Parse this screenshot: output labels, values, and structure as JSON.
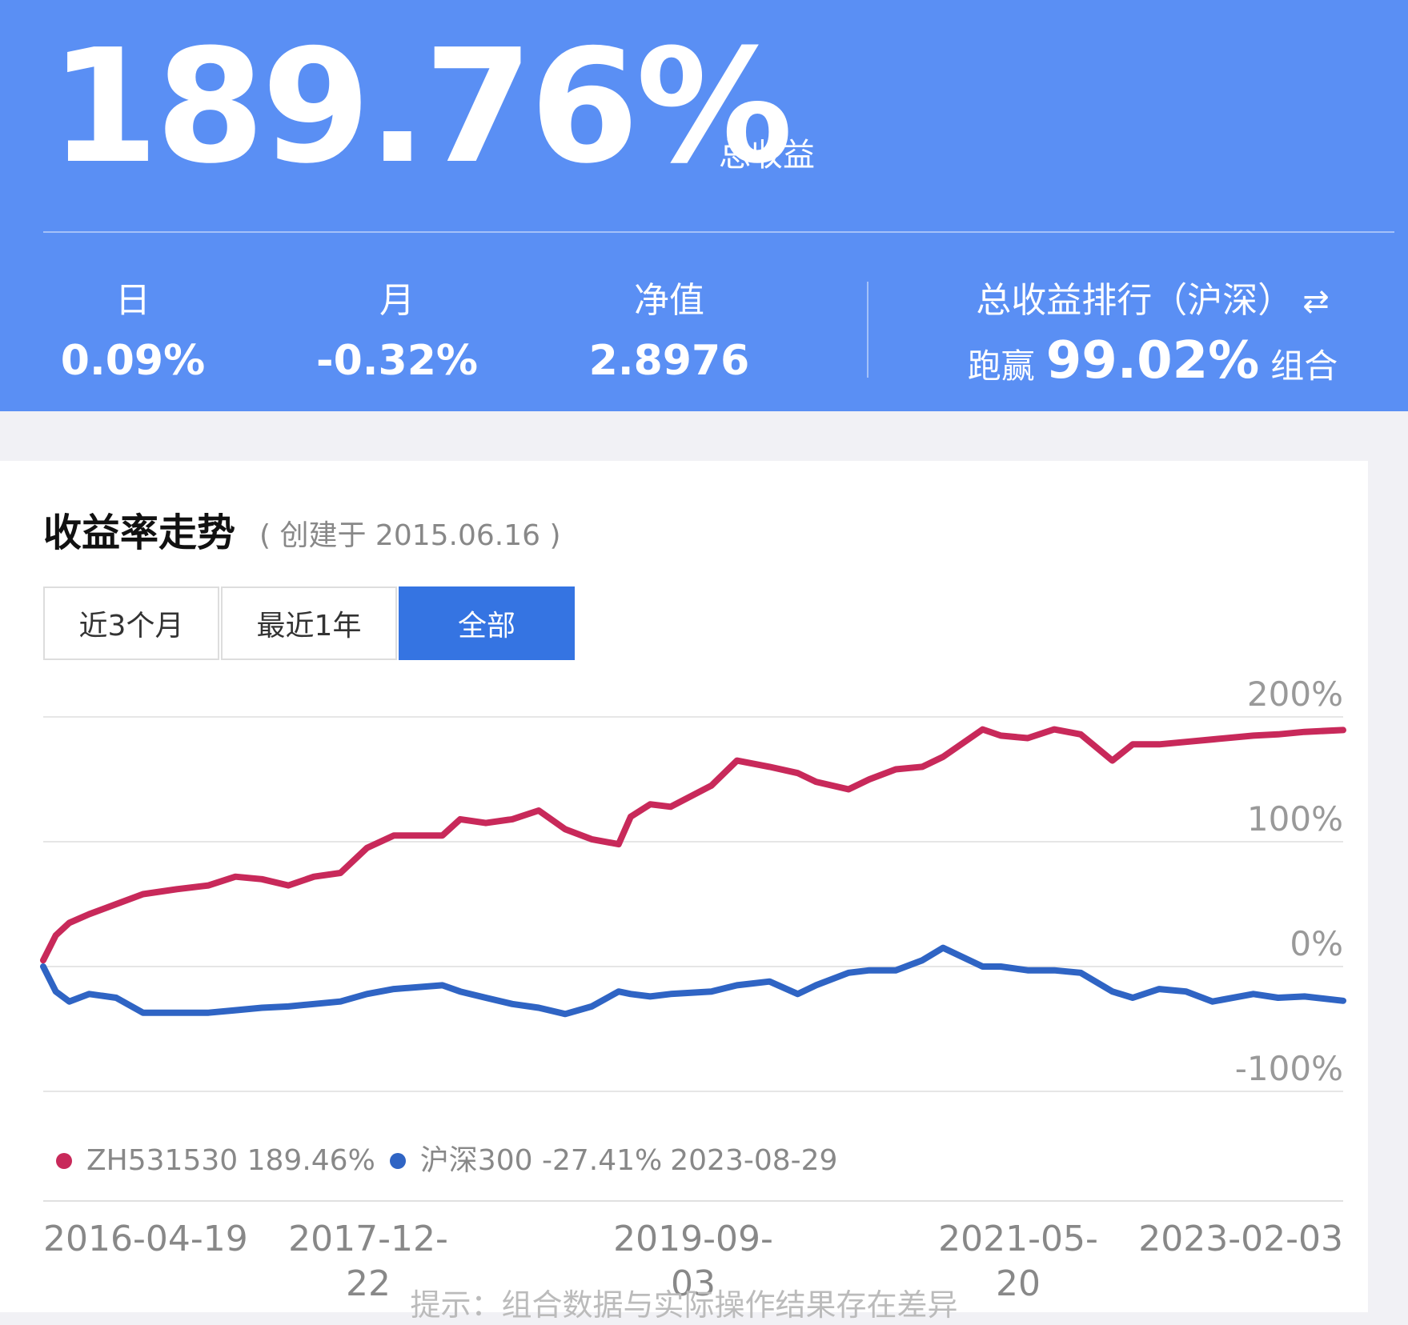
{
  "summary": {
    "total_return": "189.76%",
    "total_return_label": "总收益",
    "stats": [
      {
        "label": "日",
        "value": "0.09%"
      },
      {
        "label": "月",
        "value": "-0.32%"
      },
      {
        "label": "净值",
        "value": "2.8976"
      }
    ],
    "rank": {
      "label": "总收益排行（沪深）",
      "prefix": "跑赢",
      "percent": "99.02%",
      "suffix": "组合"
    }
  },
  "section": {
    "title": "收益率走势",
    "subtitle": "( 创建于 2015.06.16 )",
    "tabs": [
      {
        "label": "近3个月",
        "active": false
      },
      {
        "label": "最近1年",
        "active": false
      },
      {
        "label": "全部",
        "active": true
      }
    ]
  },
  "legend": {
    "items": [
      {
        "name": "ZH531530",
        "value": "189.46%",
        "color": "#c8295a"
      },
      {
        "name": "沪深300",
        "value": "-27.41%",
        "color": "#2f64c4"
      }
    ],
    "date": "2023-08-29"
  },
  "footnote": "提示：组合数据与实际操作结果存在差异",
  "chart_data": {
    "type": "line",
    "y_unit": "%",
    "ylim": [
      -100,
      200
    ],
    "yticks": [
      "200%",
      "100%",
      "0%",
      "-100%"
    ],
    "yticks_values": [
      200,
      100,
      0,
      -100
    ],
    "xticks": [
      "2016-04-19",
      "2017-12-22",
      "2019-09-03",
      "2021-05-20",
      "2023-02-03"
    ],
    "grid": true,
    "legend_position": "bottom-left",
    "x": [
      "2015-06-16",
      "2015-07-15",
      "2015-08-15",
      "2015-09-30",
      "2015-12-01",
      "2016-02-01",
      "2016-04-19",
      "2016-07-01",
      "2016-09-01",
      "2016-11-01",
      "2017-01-01",
      "2017-03-01",
      "2017-05-01",
      "2017-07-01",
      "2017-09-01",
      "2017-12-22",
      "2018-02-01",
      "2018-04-01",
      "2018-06-01",
      "2018-08-01",
      "2018-10-01",
      "2018-12-01",
      "2019-02-01",
      "2019-03-01",
      "2019-04-15",
      "2019-06-01",
      "2019-09-03",
      "2019-11-01",
      "2020-01-15",
      "2020-03-20",
      "2020-05-01",
      "2020-07-15",
      "2020-09-01",
      "2020-11-01",
      "2021-01-01",
      "2021-02-18",
      "2021-05-20",
      "2021-07-01",
      "2021-09-01",
      "2021-11-01",
      "2022-01-01",
      "2022-03-15",
      "2022-05-01",
      "2022-07-01",
      "2022-09-01",
      "2022-11-01",
      "2023-02-03",
      "2023-04-01",
      "2023-06-01",
      "2023-08-29"
    ],
    "series": [
      {
        "name": "ZH531530",
        "color": "#c8295a",
        "values": [
          5,
          25,
          35,
          42,
          50,
          58,
          62,
          65,
          72,
          70,
          65,
          72,
          75,
          95,
          105,
          105,
          118,
          115,
          118,
          125,
          110,
          102,
          98,
          120,
          130,
          128,
          145,
          165,
          160,
          155,
          148,
          142,
          150,
          158,
          160,
          168,
          190,
          185,
          183,
          190,
          186,
          165,
          178,
          178,
          180,
          182,
          185,
          186,
          188,
          189.46
        ]
      },
      {
        "name": "沪深300",
        "color": "#2f64c4",
        "values": [
          0,
          -20,
          -28,
          -22,
          -25,
          -37,
          -37,
          -37,
          -35,
          -33,
          -32,
          -30,
          -28,
          -22,
          -18,
          -15,
          -20,
          -25,
          -30,
          -33,
          -38,
          -32,
          -20,
          -22,
          -24,
          -22,
          -20,
          -15,
          -12,
          -22,
          -15,
          -5,
          -3,
          -3,
          5,
          15,
          0,
          0,
          -3,
          -3,
          -5,
          -20,
          -25,
          -18,
          -20,
          -28,
          -22,
          -25,
          -24,
          -27.41
        ]
      }
    ]
  }
}
